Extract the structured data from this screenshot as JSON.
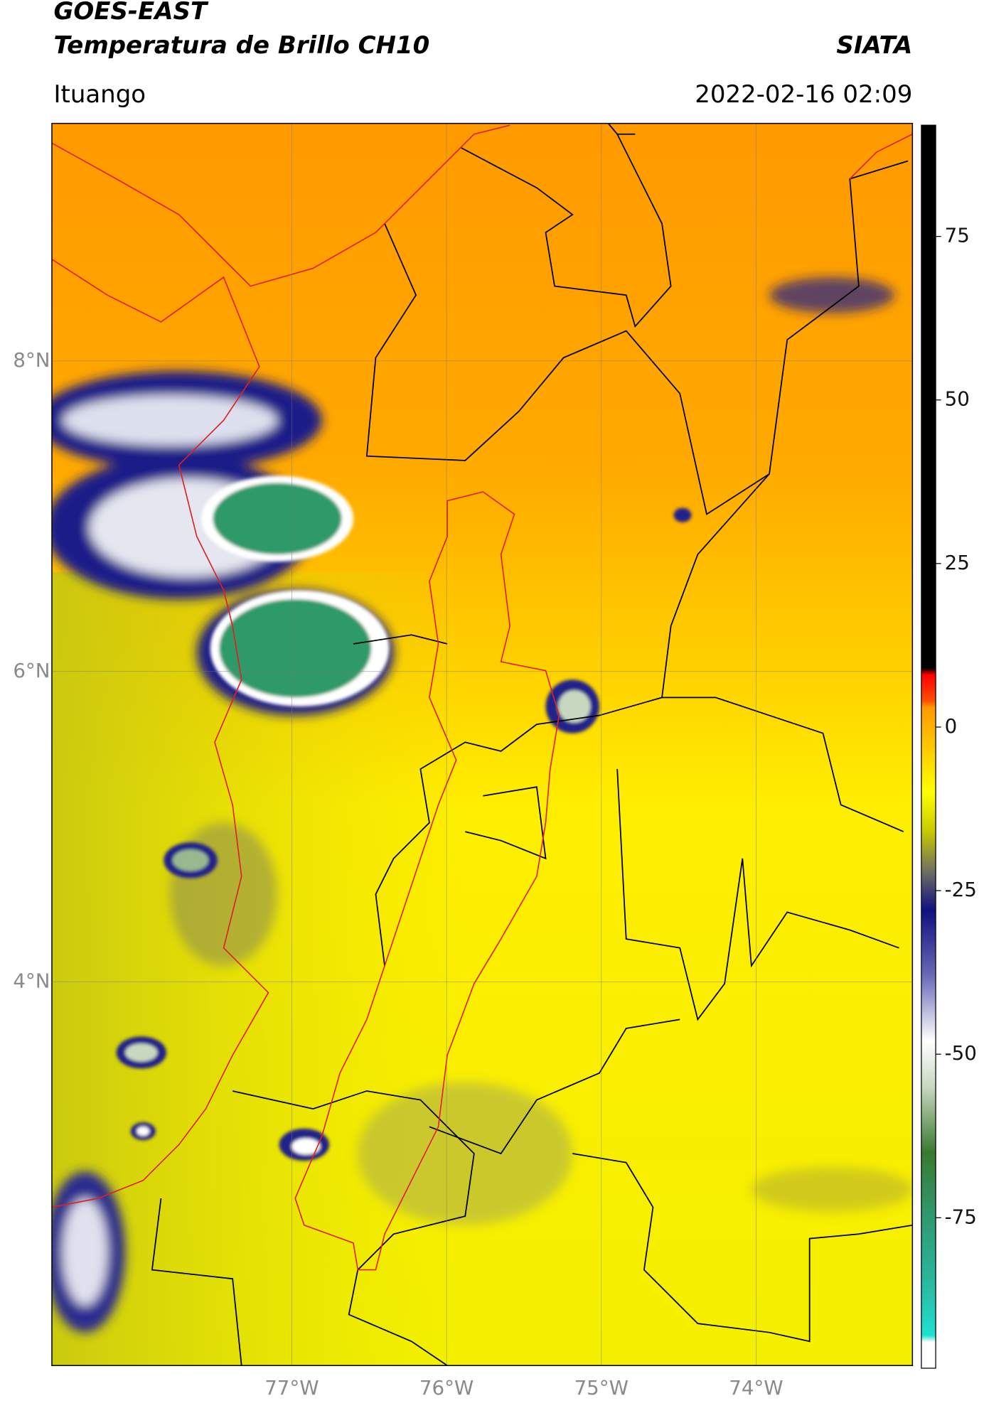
{
  "header": {
    "title": "GOES-EAST",
    "subtitle": "Temperatura de Brillo CH10",
    "source": "SIATA",
    "location": "Ituango",
    "datetime": "2022-02-16 02:09"
  },
  "map": {
    "lonlim": [
      -78.55,
      -72.99
    ],
    "latlim": [
      1.53,
      9.53
    ],
    "lon_ticks": [
      {
        "value": -77,
        "label": "77°W"
      },
      {
        "value": -76,
        "label": "76°W"
      },
      {
        "value": -75,
        "label": "75°W"
      },
      {
        "value": -74,
        "label": "74°W"
      }
    ],
    "lat_ticks": [
      {
        "value": 8,
        "label": "8°N"
      },
      {
        "value": 6,
        "label": "6°N"
      },
      {
        "value": 4,
        "label": "4°N"
      }
    ],
    "grid": true
  },
  "colorbar": {
    "lim": [
      -98,
      92
    ],
    "ticks": [
      75,
      50,
      25,
      0,
      -25,
      -50,
      -75
    ],
    "stops": [
      {
        "value": -98,
        "color": "#ffffff"
      },
      {
        "value": -94,
        "color": "#ffffff"
      },
      {
        "value": -93,
        "color": "#20e0d0"
      },
      {
        "value": -85,
        "color": "#2ab8a0"
      },
      {
        "value": -75,
        "color": "#2e9a70"
      },
      {
        "value": -65,
        "color": "#3a7a30"
      },
      {
        "value": -55,
        "color": "#c8d8c0"
      },
      {
        "value": -48,
        "color": "#ffffff"
      },
      {
        "value": -38,
        "color": "#6a6ab8"
      },
      {
        "value": -28,
        "color": "#101080"
      },
      {
        "value": -22,
        "color": "#707060"
      },
      {
        "value": -16,
        "color": "#c8c800"
      },
      {
        "value": -10,
        "color": "#ffff00"
      },
      {
        "value": 3,
        "color": "#ff9900"
      },
      {
        "value": 4,
        "color": "#ff5000"
      },
      {
        "value": 8,
        "color": "#ff0000"
      },
      {
        "value": 9,
        "color": "#000000"
      },
      {
        "value": 92,
        "color": "#000000"
      }
    ]
  }
}
